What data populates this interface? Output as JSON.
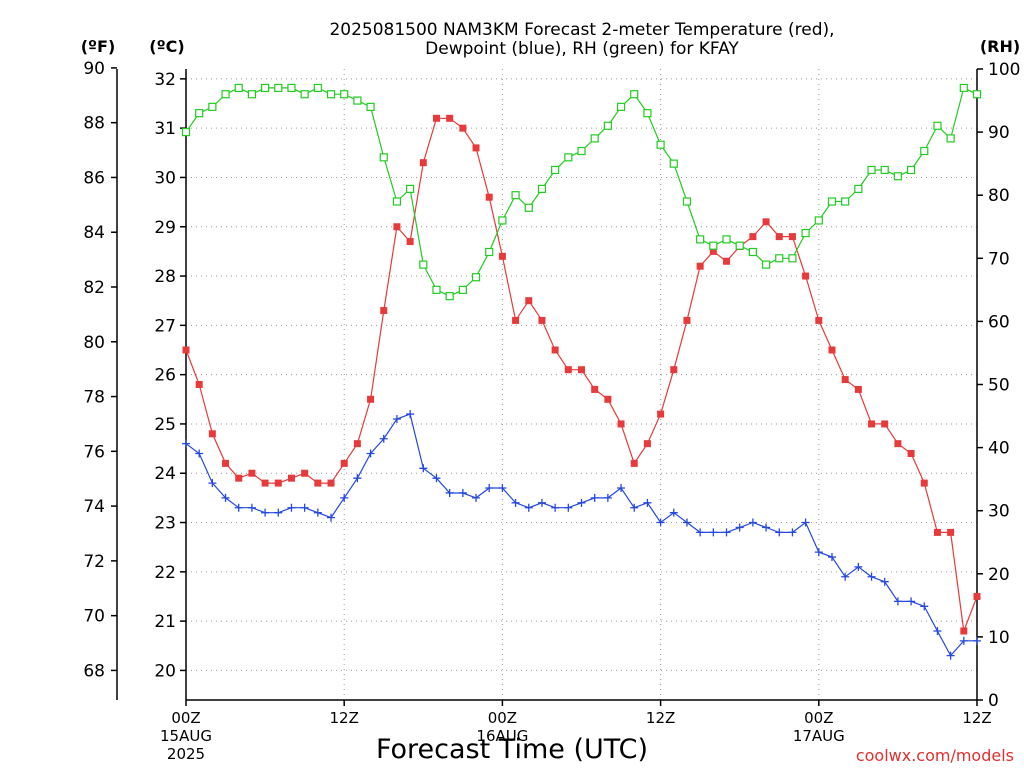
{
  "chart_data": {
    "type": "line",
    "title": "2025081500 NAM3KM Forecast 2-meter Temperature (red),",
    "subtitle": "Dewpoint (blue), RH (green) for KFAY",
    "xlabel": "Forecast Time (UTC)",
    "x_axis": {
      "range_hours": [
        0,
        60
      ],
      "ticks": [
        {
          "hour": 0,
          "label": "00Z",
          "date": "15AUG",
          "year": "2025"
        },
        {
          "hour": 12,
          "label": "12Z",
          "date": "",
          "year": ""
        },
        {
          "hour": 24,
          "label": "00Z",
          "date": "16AUG",
          "year": ""
        },
        {
          "hour": 36,
          "label": "12Z",
          "date": "",
          "year": ""
        },
        {
          "hour": 48,
          "label": "00Z",
          "date": "17AUG",
          "year": ""
        },
        {
          "hour": 60,
          "label": "12Z",
          "date": "",
          "year": ""
        }
      ]
    },
    "y_axes": {
      "fahrenheit": {
        "unit_label": "(ºF)",
        "ticks": [
          68,
          70,
          72,
          74,
          76,
          78,
          80,
          82,
          84,
          86,
          88,
          90
        ]
      },
      "celsius": {
        "unit_label": "(ºC)",
        "range": [
          19.4,
          32.2
        ],
        "ticks": [
          20,
          21,
          22,
          23,
          24,
          25,
          26,
          27,
          28,
          29,
          30,
          31,
          32
        ]
      },
      "rh": {
        "unit_label": "(RH)",
        "range": [
          0,
          100
        ],
        "ticks": [
          0,
          10,
          20,
          30,
          40,
          50,
          60,
          70,
          80,
          90,
          100
        ]
      }
    },
    "grid": true,
    "series": [
      {
        "label": "Temperature",
        "color": "#e83a3a",
        "marker": "filled-square",
        "axis": "celsius",
        "x": [
          0,
          1,
          2,
          3,
          4,
          5,
          6,
          7,
          8,
          9,
          10,
          11,
          12,
          13,
          14,
          15,
          16,
          17,
          18,
          19,
          20,
          21,
          22,
          23,
          24,
          25,
          26,
          27,
          28,
          29,
          30,
          31,
          32,
          33,
          34,
          35,
          36,
          37,
          38,
          39,
          40,
          41,
          42,
          43,
          44,
          45,
          46,
          47,
          48,
          49,
          50,
          51,
          52,
          53,
          54,
          55,
          56,
          57,
          58,
          59,
          60
        ],
        "values": [
          26.5,
          25.8,
          24.8,
          24.2,
          23.9,
          24.0,
          23.8,
          23.8,
          23.9,
          24.0,
          23.8,
          23.8,
          24.2,
          24.6,
          25.5,
          27.3,
          29.0,
          28.7,
          30.3,
          31.2,
          31.2,
          31.0,
          30.6,
          29.6,
          28.4,
          27.1,
          27.5,
          27.1,
          26.5,
          26.1,
          26.1,
          25.7,
          25.5,
          25.0,
          24.2,
          24.6,
          25.2,
          26.1,
          27.1,
          28.2,
          28.5,
          28.3,
          28.6,
          28.8,
          29.1,
          28.8,
          28.8,
          28.0,
          27.1,
          26.5,
          25.9,
          25.7,
          25.0,
          25.0,
          24.6,
          24.4,
          23.8,
          22.8,
          22.8,
          20.8,
          21.5
        ]
      },
      {
        "label": "Dewpoint",
        "color": "#2448e0",
        "marker": "plus",
        "axis": "celsius",
        "x": [
          0,
          1,
          2,
          3,
          4,
          5,
          6,
          7,
          8,
          9,
          10,
          11,
          12,
          13,
          14,
          15,
          16,
          17,
          18,
          19,
          20,
          21,
          22,
          23,
          24,
          25,
          26,
          27,
          28,
          29,
          30,
          31,
          32,
          33,
          34,
          35,
          36,
          37,
          38,
          39,
          40,
          41,
          42,
          43,
          44,
          45,
          46,
          47,
          48,
          49,
          50,
          51,
          52,
          53,
          54,
          55,
          56,
          57,
          58,
          59,
          60
        ],
        "values": [
          24.6,
          24.4,
          23.8,
          23.5,
          23.3,
          23.3,
          23.2,
          23.2,
          23.3,
          23.3,
          23.2,
          23.1,
          23.5,
          23.9,
          24.4,
          24.7,
          25.1,
          25.2,
          24.1,
          23.9,
          23.6,
          23.6,
          23.5,
          23.7,
          23.7,
          23.4,
          23.3,
          23.4,
          23.3,
          23.3,
          23.4,
          23.5,
          23.5,
          23.7,
          23.3,
          23.4,
          23.0,
          23.2,
          23.0,
          22.8,
          22.8,
          22.8,
          22.9,
          23.0,
          22.9,
          22.8,
          22.8,
          23.0,
          22.4,
          22.3,
          21.9,
          22.1,
          21.9,
          21.8,
          21.4,
          21.4,
          21.3,
          20.8,
          20.3,
          20.6,
          20.6
        ]
      },
      {
        "label": "RH",
        "color": "#22cc22",
        "marker": "open-square",
        "axis": "rh",
        "x": [
          0,
          1,
          2,
          3,
          4,
          5,
          6,
          7,
          8,
          9,
          10,
          11,
          12,
          13,
          14,
          15,
          16,
          17,
          18,
          19,
          20,
          21,
          22,
          23,
          24,
          25,
          26,
          27,
          28,
          29,
          30,
          31,
          32,
          33,
          34,
          35,
          36,
          37,
          38,
          39,
          40,
          41,
          42,
          43,
          44,
          45,
          46,
          47,
          48,
          49,
          50,
          51,
          52,
          53,
          54,
          55,
          56,
          57,
          58,
          59,
          60
        ],
        "values": [
          90,
          93,
          94,
          96,
          97,
          96,
          97,
          97,
          97,
          96,
          97,
          96,
          96,
          95,
          94,
          86,
          79,
          81,
          69,
          65,
          64,
          65,
          67,
          71,
          76,
          80,
          78,
          81,
          84,
          86,
          87,
          89,
          91,
          94,
          96,
          93,
          88,
          85,
          79,
          73,
          72,
          73,
          72,
          71,
          69,
          70,
          70,
          74,
          76,
          79,
          79,
          81,
          84,
          84,
          83,
          84,
          87,
          91,
          89,
          97,
          96
        ]
      }
    ],
    "credit": "coolwx.com/models"
  }
}
